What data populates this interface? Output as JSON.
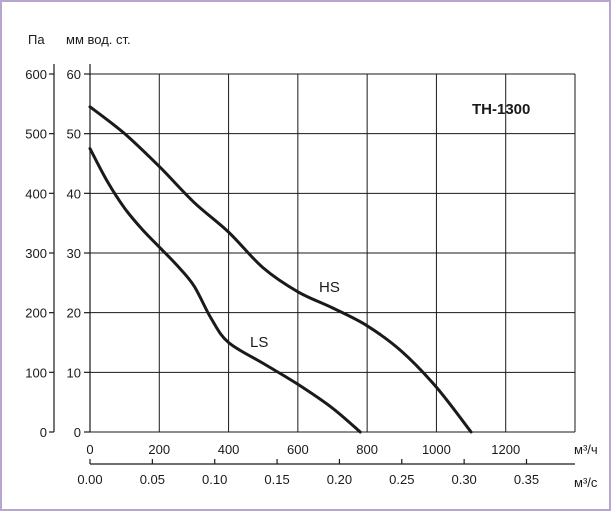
{
  "chart_data": {
    "type": "line",
    "model": "TH-1300",
    "y_unit_left": "Па",
    "y_unit_right": "мм вод. ст.",
    "x_unit_top": "м³/ч",
    "x_unit_bottom": "м³/с",
    "y_pa_ticks": [
      "0",
      "100",
      "200",
      "300",
      "400",
      "500",
      "600"
    ],
    "y_mm_ticks": [
      "0",
      "10",
      "20",
      "30",
      "40",
      "50",
      "60"
    ],
    "x_m3h_ticks": [
      "0",
      "200",
      "400",
      "600",
      "800",
      "1000",
      "1200"
    ],
    "x_m3s_ticks": [
      "0.00",
      "0.05",
      "0.10",
      "0.15",
      "0.20",
      "0.25",
      "0.30",
      "0.35"
    ],
    "xlim": [
      0,
      1400
    ],
    "ylim": [
      0,
      600
    ],
    "grid": true,
    "series": [
      {
        "name": "HS",
        "x": [
          0,
          100,
          200,
          300,
          400,
          500,
          600,
          700,
          800,
          900,
          1000,
          1100
        ],
        "y": [
          545,
          500,
          445,
          385,
          335,
          275,
          235,
          208,
          178,
          135,
          75,
          0
        ]
      },
      {
        "name": "LS",
        "x": [
          0,
          50,
          100,
          150,
          200,
          250,
          300,
          350,
          400,
          500,
          600,
          700,
          780
        ],
        "y": [
          475,
          420,
          375,
          340,
          310,
          280,
          245,
          190,
          150,
          115,
          80,
          40,
          0
        ]
      }
    ]
  }
}
